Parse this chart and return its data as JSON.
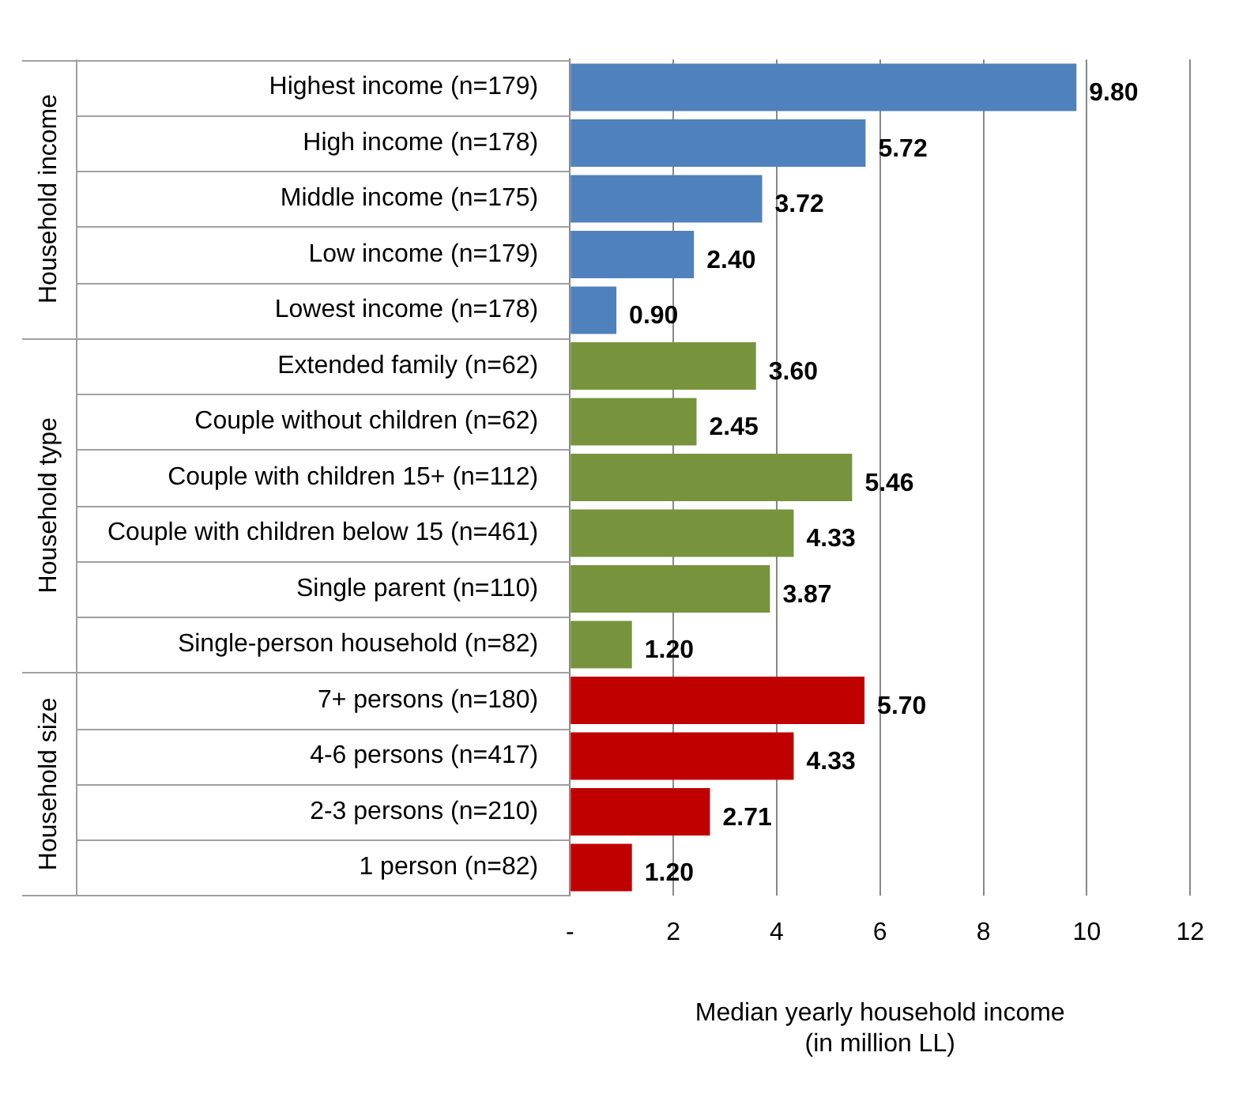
{
  "chart_data": {
    "type": "bar",
    "orientation": "horizontal",
    "xlabel": "Median yearly household income\n(in million LL)",
    "categories": [
      "Highest income (n=179)",
      "High income (n=178)",
      "Middle income (n=175)",
      "Low income (n=179)",
      "Lowest income (n=178)",
      "Extended family (n=62)",
      "Couple without children (n=62)",
      "Couple with children 15+ (n=112)",
      "Couple with children below 15 (n=461)",
      "Single parent (n=110)",
      "Single-person household (n=82)",
      "7+ persons (n=180)",
      "4-6 persons (n=417)",
      "2-3 persons (n=210)",
      "1 person (n=82)"
    ],
    "values": [
      9.8,
      5.72,
      3.72,
      2.4,
      0.9,
      3.6,
      2.45,
      5.46,
      4.33,
      3.87,
      1.2,
      5.7,
      4.33,
      2.71,
      1.2
    ],
    "value_labels": [
      "9.80",
      "5.72",
      "3.72",
      "2.40",
      "0.90",
      "3.60",
      "2.45",
      "5.46",
      "4.33",
      "3.87",
      "1.20",
      "5.70",
      "4.33",
      "2.71",
      "1.20"
    ],
    "colors": [
      "#4f81bd",
      "#4f81bd",
      "#4f81bd",
      "#4f81bd",
      "#4f81bd",
      "#77933c",
      "#77933c",
      "#77933c",
      "#77933c",
      "#77933c",
      "#77933c",
      "#c00000",
      "#c00000",
      "#c00000",
      "#c00000"
    ],
    "annotations": [
      "Household income",
      "Household type",
      "Household size"
    ],
    "xlim": [
      0,
      12
    ],
    "xticks": [
      {
        "value": 0,
        "label": "-"
      },
      2,
      4,
      6,
      8,
      10,
      12
    ],
    "grid": "x",
    "legend": false
  }
}
